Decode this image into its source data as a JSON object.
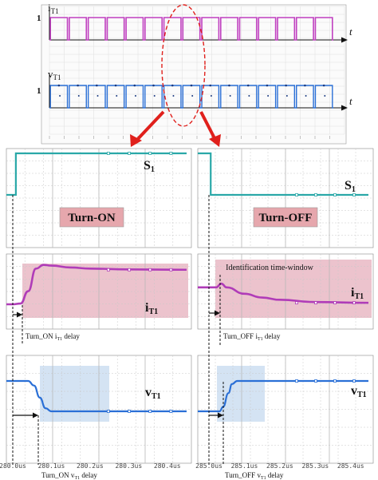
{
  "chart_data": [
    {
      "panel": "overview",
      "type": "line",
      "title": "",
      "subplots": [
        {
          "ylabel": "iT1",
          "ytick": "1",
          "xlabel": "t",
          "ylim": [
            0,
            1.1
          ],
          "period_fraction": 0.0667,
          "high_fraction": 0.9,
          "color": "#c040c0"
        },
        {
          "ylabel": "vT1",
          "ytick": "1",
          "xlabel": "t",
          "ylim": [
            0,
            1.1
          ],
          "period_fraction": 0.0667,
          "high_fraction": 0.9,
          "color": "#2a6fd6"
        }
      ]
    },
    {
      "panel": "turn-on",
      "type": "line",
      "xlim": [
        280.0,
        280.45
      ],
      "x_ticks": [
        "280.0us",
        "280.1us",
        "280.2us",
        "280.3us",
        "280.4us"
      ],
      "x_tick_values": [
        280.0,
        280.1,
        280.2,
        280.3,
        280.4
      ],
      "series": [
        {
          "name": "S1",
          "x": [
            280.0,
            280.008,
            280.008,
            280.45
          ],
          "y": [
            0,
            0,
            1,
            1
          ],
          "color": "#2aa8a8"
        },
        {
          "name": "iT1",
          "x": [
            280.0,
            280.02,
            280.04,
            280.06,
            280.08,
            280.1,
            280.15,
            280.2,
            280.3,
            280.45
          ],
          "y": [
            0,
            0.02,
            0.35,
            0.95,
            1.05,
            1.03,
            0.98,
            0.95,
            0.93,
            0.92
          ],
          "color": "#b03cb8"
        },
        {
          "name": "vT1",
          "x": [
            280.0,
            280.04,
            280.055,
            280.07,
            280.085,
            280.1,
            280.45
          ],
          "y": [
            1,
            1,
            0.85,
            0.45,
            0.1,
            0,
            0
          ],
          "color": "#2a6fd6"
        }
      ],
      "label": "Turn-ON",
      "annotations": [
        "Turn_ON iT1 delay",
        "Turn_ON vT1 delay"
      ]
    },
    {
      "panel": "turn-off",
      "type": "line",
      "xlim": [
        285.0,
        285.45
      ],
      "x_ticks": [
        "285.0us",
        "285.1us",
        "285.2us",
        "285.3us",
        "285.4us"
      ],
      "x_tick_values": [
        285.0,
        285.1,
        285.2,
        285.3,
        285.4
      ],
      "series": [
        {
          "name": "S1",
          "x": [
            285.0,
            285.005,
            285.005,
            285.45
          ],
          "y": [
            1,
            1,
            0,
            0
          ],
          "color": "#2aa8a8"
        },
        {
          "name": "iT1",
          "x": [
            285.0,
            285.02,
            285.035,
            285.05,
            285.1,
            285.15,
            285.2,
            285.3,
            285.45
          ],
          "y": [
            0.45,
            0.45,
            0.55,
            0.45,
            0.28,
            0.18,
            0.12,
            0.06,
            0.04
          ],
          "color": "#b03cb8"
        },
        {
          "name": "vT1",
          "x": [
            285.0,
            285.03,
            285.04,
            285.055,
            285.065,
            285.08,
            285.45
          ],
          "y": [
            0,
            0,
            0.15,
            0.6,
            0.9,
            1,
            1
          ],
          "color": "#2a6fd6"
        }
      ],
      "label": "Turn-OFF",
      "window_label": "Identification time-window",
      "annotations": [
        "Turn_OFF iT1 delay",
        "Turn_OFF vT1 delay"
      ]
    }
  ],
  "labels": {
    "s1": "S",
    "s1_sub": "1",
    "i": "i",
    "i_sub": "T1",
    "v": "v",
    "v_sub": "T1",
    "turn_on": "Turn-ON",
    "turn_off": "Turn-OFF",
    "window": "Identification time-window",
    "on_i_delay_a": "Turn_ON i",
    "on_i_delay_sub": "T1",
    "on_i_delay_b": " delay",
    "off_i_delay_a": "Turn_OFF i",
    "off_i_delay_sub": "T1",
    "off_i_delay_b": " delay",
    "on_v_delay_a": "Turn_ON v",
    "on_v_delay_sub": "T1",
    "on_v_delay_b": " delay",
    "off_v_delay_a": "Turn_OFF v",
    "off_v_delay_sub": "T1",
    "off_v_delay_b": " delay",
    "one": "1",
    "t": "t"
  },
  "colors": {
    "grid": "#c8c8c8",
    "pink_fill": "#e9b8c4",
    "blue_fill": "#cfe0f2",
    "red": "#e0201c",
    "label_box": "#e6a7ad"
  }
}
